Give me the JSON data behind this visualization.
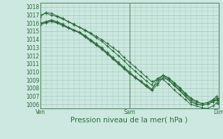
{
  "title": "",
  "xlabel": "Pression niveau de la mer( hPa )",
  "bg_color": "#cce8e0",
  "grid_color": "#a0c8b8",
  "line_color": "#2d6b3c",
  "spine_color": "#5a8a6a",
  "ylim": [
    1005.5,
    1018.5
  ],
  "xlim": [
    0,
    48
  ],
  "xtick_positions": [
    0,
    24,
    48
  ],
  "xtick_labels": [
    "Ven",
    "Sam",
    "Dim"
  ],
  "ytick_positions": [
    1006,
    1007,
    1008,
    1009,
    1010,
    1011,
    1012,
    1013,
    1014,
    1015,
    1016,
    1017,
    1018
  ],
  "series": [
    [
      1017.0,
      1017.2,
      1017.0,
      1016.8,
      1016.5,
      1016.2,
      1015.8,
      1015.5,
      1015.2,
      1014.8,
      1014.4,
      1014.0,
      1013.5,
      1013.0,
      1012.5,
      1011.8,
      1011.2,
      1010.6,
      1010.0,
      1009.4,
      1008.8,
      1009.0,
      1009.1,
      1008.5,
      1007.8,
      1007.2,
      1006.6,
      1006.0,
      1005.8,
      1005.6,
      1005.5,
      1005.8,
      1006.2,
      1006.0
    ],
    [
      1016.8,
      1017.3,
      1017.2,
      1016.9,
      1016.6,
      1016.2,
      1015.9,
      1015.5,
      1015.1,
      1014.7,
      1014.2,
      1013.8,
      1013.2,
      1012.6,
      1012.0,
      1011.4,
      1010.7,
      1010.1,
      1009.5,
      1008.9,
      1008.4,
      1009.2,
      1009.5,
      1009.0,
      1008.3,
      1007.7,
      1007.0,
      1006.3,
      1006.0,
      1005.9,
      1006.0,
      1006.3,
      1006.5,
      1006.2
    ],
    [
      1015.8,
      1016.0,
      1016.2,
      1016.0,
      1015.7,
      1015.4,
      1015.1,
      1014.9,
      1014.5,
      1014.0,
      1013.5,
      1013.0,
      1012.4,
      1011.8,
      1011.2,
      1010.6,
      1010.0,
      1009.4,
      1008.9,
      1008.4,
      1007.9,
      1008.6,
      1009.6,
      1009.2,
      1008.6,
      1008.0,
      1007.3,
      1006.7,
      1006.3,
      1006.1,
      1006.2,
      1006.5,
      1006.8,
      1006.5
    ],
    [
      1015.9,
      1016.1,
      1016.3,
      1016.1,
      1015.8,
      1015.4,
      1015.1,
      1014.8,
      1014.3,
      1013.8,
      1013.3,
      1012.8,
      1012.2,
      1011.6,
      1011.0,
      1010.4,
      1009.8,
      1009.3,
      1008.8,
      1008.2,
      1007.7,
      1008.4,
      1009.3,
      1009.0,
      1008.4,
      1007.8,
      1007.1,
      1006.5,
      1006.1,
      1005.9,
      1006.0,
      1006.4,
      1006.6,
      1006.4
    ],
    [
      1016.0,
      1016.2,
      1016.4,
      1016.2,
      1015.9,
      1015.5,
      1015.2,
      1014.9,
      1014.4,
      1013.9,
      1013.4,
      1012.9,
      1012.3,
      1011.7,
      1011.1,
      1010.5,
      1009.9,
      1009.3,
      1008.8,
      1008.3,
      1007.8,
      1009.0,
      1009.6,
      1009.3,
      1008.7,
      1008.1,
      1007.4,
      1006.8,
      1006.4,
      1006.1,
      1006.2,
      1006.6,
      1007.0,
      1006.7
    ]
  ],
  "x_values": [
    0,
    1.5,
    3,
    4.5,
    6,
    7.5,
    9,
    10.5,
    12,
    13.5,
    15,
    16.5,
    18,
    19.5,
    21,
    22.5,
    24,
    25.5,
    27,
    28.5,
    30,
    31.5,
    33,
    34.5,
    36,
    37.5,
    39,
    40.5,
    42,
    43.5,
    45,
    46.5,
    47.5,
    48
  ],
  "minor_xtick_step": 1.5,
  "xlabel_fontsize": 7.5,
  "tick_label_fontsize": 5.5
}
